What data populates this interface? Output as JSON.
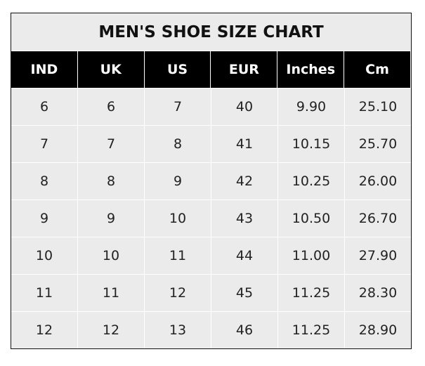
{
  "chart_data": {
    "type": "table",
    "title": "MEN'S SHOE SIZE CHART",
    "columns": [
      "IND",
      "UK",
      "US",
      "EUR",
      "Inches",
      "Cm"
    ],
    "rows": [
      [
        "6",
        "6",
        "7",
        "40",
        "9.90",
        "25.10"
      ],
      [
        "7",
        "7",
        "8",
        "41",
        "10.15",
        "25.70"
      ],
      [
        "8",
        "8",
        "9",
        "42",
        "10.25",
        "26.00"
      ],
      [
        "9",
        "9",
        "10",
        "43",
        "10.50",
        "26.70"
      ],
      [
        "10",
        "10",
        "11",
        "44",
        "11.00",
        "27.90"
      ],
      [
        "11",
        "11",
        "12",
        "45",
        "11.25",
        "28.30"
      ],
      [
        "12",
        "12",
        "13",
        "46",
        "11.25",
        "28.90"
      ]
    ]
  },
  "colors": {
    "header_bg": "#000000",
    "body_bg": "#ebebeb",
    "grid": "#ffffff"
  }
}
